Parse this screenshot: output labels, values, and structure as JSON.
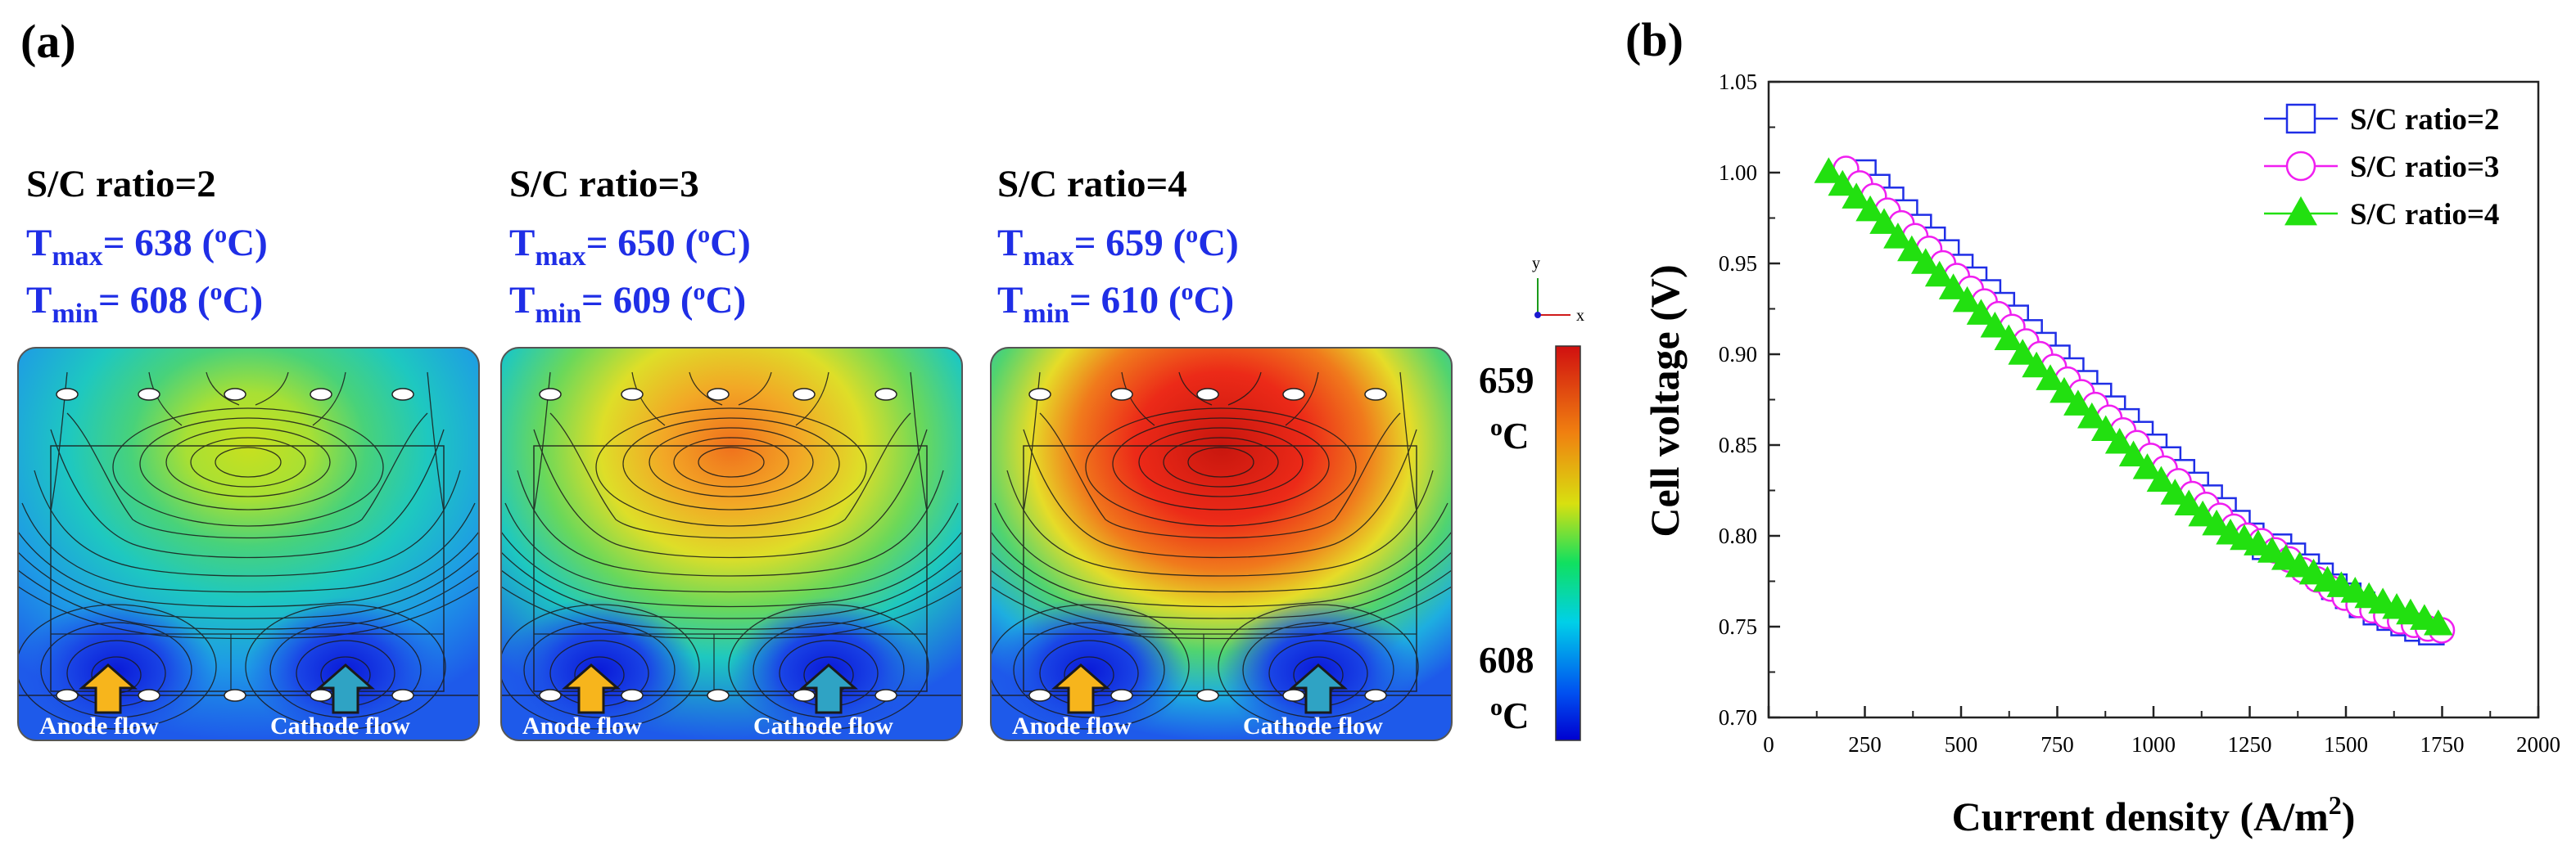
{
  "panel_a": {
    "label": "(a)",
    "sub_label": "(a)",
    "panels": [
      {
        "title": "S/C ratio=2",
        "tmax_value": "638",
        "tmin_value": "608"
      },
      {
        "title": "S/C ratio=3",
        "tmax_value": "650",
        "tmin_value": "609"
      },
      {
        "title": "S/C ratio=4",
        "tmax_value": "659",
        "tmin_value": "610"
      }
    ],
    "t_letter": "T",
    "max_sub": "max",
    "min_sub": "min",
    "unit_open": "= ",
    "unit_paren_open": " (",
    "unit_o": "o",
    "unit_c_close": "C)",
    "anode_label": "Anode flow",
    "cathode_label": "Cathode flow",
    "colorbar": {
      "max_value": "659",
      "min_value": "608",
      "unit_o": "o",
      "unit_c": "C",
      "axis_y": "y",
      "axis_x": "x"
    }
  },
  "panel_b": {
    "label": "(b)"
  },
  "chart_data": {
    "type": "line",
    "title": "",
    "xlabel": "Current density (A/m",
    "xlabel_sup": "2",
    "xlabel_close": ")",
    "ylabel": "Cell voltage (V)",
    "xlim": [
      0,
      2000
    ],
    "ylim": [
      0.7,
      1.05
    ],
    "x_ticks": [
      0,
      250,
      500,
      750,
      1000,
      1250,
      1500,
      1750,
      2000
    ],
    "y_ticks": [
      0.7,
      0.75,
      0.8,
      0.85,
      0.9,
      0.95,
      1.0,
      1.05
    ],
    "x_tick_labels": [
      "0",
      "250",
      "500",
      "750",
      "1000",
      "1250",
      "1500",
      "1750",
      "2000"
    ],
    "y_tick_labels": [
      "0.70",
      "0.75",
      "0.80",
      "0.85",
      "0.90",
      "0.95",
      "1.00",
      "1.05"
    ],
    "legend_position": "top-right",
    "grid": false,
    "series": [
      {
        "name": "S/C ratio=2",
        "color": "#1f2ee6",
        "marker": "square",
        "x": [
          246,
          282,
          318,
          354,
          390,
          426,
          462,
          498,
          534,
          570,
          606,
          642,
          678,
          714,
          750,
          786,
          822,
          858,
          894,
          930,
          966,
          1002,
          1038,
          1074,
          1110,
          1146,
          1182,
          1218,
          1254,
          1290,
          1326,
          1362,
          1398,
          1434,
          1470,
          1506,
          1542,
          1578,
          1614,
          1650,
          1686,
          1722
        ],
        "values": [
          1.0,
          0.992,
          0.985,
          0.978,
          0.97,
          0.963,
          0.956,
          0.948,
          0.941,
          0.934,
          0.927,
          0.92,
          0.912,
          0.905,
          0.898,
          0.891,
          0.884,
          0.877,
          0.87,
          0.863,
          0.856,
          0.849,
          0.842,
          0.835,
          0.828,
          0.821,
          0.814,
          0.807,
          0.8,
          0.794,
          0.794,
          0.789,
          0.783,
          0.778,
          0.772,
          0.767,
          0.762,
          0.758,
          0.755,
          0.752,
          0.749,
          0.747
        ]
      },
      {
        "name": "S/C ratio=3",
        "color": "#f01ef0",
        "marker": "circle",
        "x": [
          201,
          237,
          273,
          309,
          345,
          381,
          417,
          453,
          489,
          525,
          561,
          597,
          633,
          669,
          705,
          741,
          777,
          813,
          849,
          885,
          921,
          957,
          993,
          1029,
          1065,
          1101,
          1137,
          1173,
          1209,
          1245,
          1281,
          1317,
          1353,
          1389,
          1425,
          1461,
          1497,
          1533,
          1569,
          1605,
          1641,
          1677,
          1713,
          1749
        ],
        "values": [
          1.002,
          0.994,
          0.987,
          0.979,
          0.972,
          0.965,
          0.958,
          0.95,
          0.943,
          0.936,
          0.929,
          0.922,
          0.915,
          0.907,
          0.9,
          0.893,
          0.886,
          0.879,
          0.872,
          0.865,
          0.858,
          0.851,
          0.844,
          0.837,
          0.83,
          0.823,
          0.817,
          0.811,
          0.805,
          0.8,
          0.797,
          0.792,
          0.787,
          0.781,
          0.776,
          0.771,
          0.766,
          0.762,
          0.759,
          0.756,
          0.753,
          0.751,
          0.749,
          0.748
        ]
      },
      {
        "name": "S/C ratio=4",
        "color": "#22e010",
        "marker": "triangle",
        "x": [
          156,
          192,
          228,
          264,
          300,
          336,
          372,
          408,
          444,
          480,
          516,
          552,
          588,
          624,
          660,
          696,
          732,
          768,
          804,
          840,
          876,
          912,
          948,
          984,
          1020,
          1056,
          1092,
          1128,
          1164,
          1200,
          1236,
          1272,
          1308,
          1344,
          1380,
          1416,
          1452,
          1488,
          1524,
          1560,
          1596,
          1632,
          1668,
          1704,
          1740
        ],
        "values": [
          1.0,
          0.993,
          0.986,
          0.979,
          0.972,
          0.964,
          0.957,
          0.95,
          0.943,
          0.936,
          0.929,
          0.922,
          0.915,
          0.908,
          0.9,
          0.893,
          0.886,
          0.879,
          0.872,
          0.865,
          0.858,
          0.851,
          0.844,
          0.837,
          0.83,
          0.823,
          0.817,
          0.811,
          0.806,
          0.801,
          0.798,
          0.795,
          0.791,
          0.787,
          0.783,
          0.779,
          0.775,
          0.772,
          0.769,
          0.766,
          0.763,
          0.76,
          0.757,
          0.754,
          0.751
        ]
      }
    ]
  }
}
